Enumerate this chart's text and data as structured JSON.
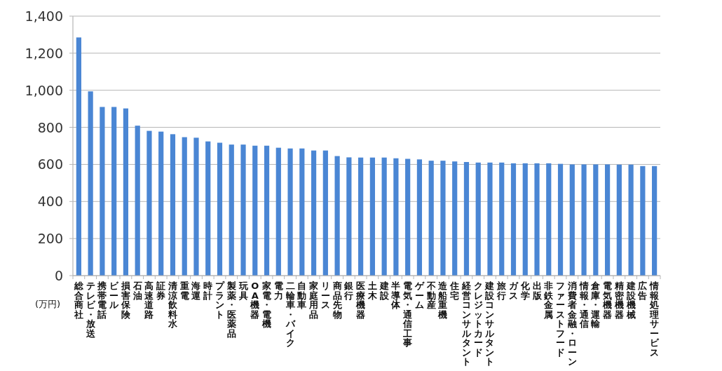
{
  "chart_data": {
    "type": "bar",
    "ylabel": "(万円)",
    "categories": [
      "総合商社",
      "テレビ・放送",
      "携帯電話",
      "ビール",
      "損害保険",
      "石油",
      "高速道路",
      "証券",
      "清涼飲料水",
      "重電",
      "海運",
      "時計",
      "プラント",
      "製薬・医薬品",
      "玩具",
      "OA機器",
      "家電・電機",
      "電力",
      "二輪車・バイク",
      "自動車",
      "家庭用品",
      "リース",
      "商品先物",
      "銀行",
      "医療機器",
      "土木",
      "建設",
      "半導体",
      "電気・通信工事",
      "ゲーム",
      "不動産",
      "造船重機",
      "住宅",
      "経営コンサルタント",
      "クレジットカード",
      "建設コンサルタント",
      "旅行",
      "ガス",
      "化学",
      "出版",
      "非鉄金属",
      "ファーストフード",
      "消費者金融・ローン",
      "情報・通信",
      "倉庫・運輸",
      "電気機器",
      "精密機器",
      "建設機械",
      "広告",
      "情報処理サービス"
    ],
    "values": [
      1285,
      994,
      910,
      910,
      902,
      809,
      781,
      777,
      763,
      747,
      744,
      724,
      717,
      707,
      707,
      701,
      701,
      690,
      686,
      686,
      675,
      675,
      645,
      638,
      637,
      637,
      637,
      633,
      630,
      627,
      620,
      620,
      616,
      613,
      610,
      610,
      610,
      606,
      606,
      606,
      606,
      603,
      600,
      600,
      600,
      600,
      599,
      599,
      591,
      591
    ],
    "color": "#4a86d4",
    "ylim": [
      0,
      1400
    ],
    "yticks": [
      0,
      {
        "value": 200,
        "label": "200"
      },
      {
        "value": 400,
        "label": "400"
      },
      {
        "value": 600,
        "label": "600"
      },
      {
        "value": 800,
        "label": "800"
      },
      {
        "value": 1000,
        "label": "1,000"
      },
      {
        "value": 1200,
        "label": "1,200"
      },
      {
        "value": 1400,
        "label": "1,400"
      }
    ],
    "grid": "y"
  }
}
